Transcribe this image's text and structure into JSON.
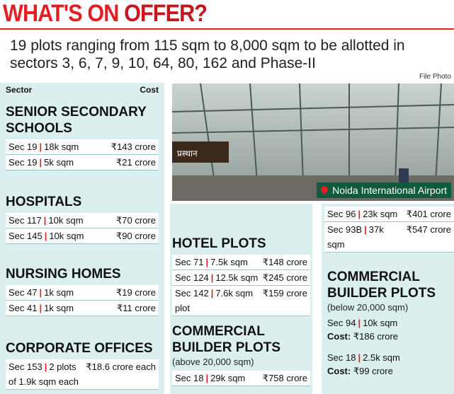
{
  "header": {
    "title_highlight": "WHAT'S ON",
    "title_rest": "OFFER?",
    "subtitle": "19 plots ranging from 115 sqm to 8,000 sqm to be allotted in sectors 3, 6, 7, 9, 10, 64, 80, 162 and Phase-II"
  },
  "separator": "|",
  "table_header": {
    "sector": "Sector",
    "cost": "Cost"
  },
  "photo": {
    "credit": "File Photo",
    "sign": "प्रस्थान",
    "caption": "Noida International Airport"
  },
  "sections": [
    {
      "title": "SENIOR SECONDARY SCHOOLS",
      "rows": [
        {
          "sector": "Sec 19",
          "area": "18k sqm",
          "cost": "₹143 crore"
        },
        {
          "sector": "Sec 19",
          "area": "5k sqm",
          "cost": "₹21 crore"
        }
      ]
    },
    {
      "title": "HOSPITALS",
      "rows": [
        {
          "sector": "Sec 117",
          "area": "10k sqm",
          "cost": "₹70 crore"
        },
        {
          "sector": "Sec 145",
          "area": "10k sqm",
          "cost": "₹90 crore"
        }
      ]
    },
    {
      "title": "NURSING HOMES",
      "rows": [
        {
          "sector": "Sec 47",
          "area": "1k sqm",
          "cost": "₹19 crore"
        },
        {
          "sector": "Sec 41",
          "area": "1k sqm",
          "cost": "₹11 crore"
        }
      ]
    },
    {
      "title": "CORPORATE OFFICES",
      "rows": [
        {
          "sector": "Sec 153",
          "area": "2 plots of 1.9k sqm each",
          "cost": "₹18.6 crore each"
        }
      ]
    },
    {
      "title": "HOTEL PLOTS",
      "rows": [
        {
          "sector": "Sec 71",
          "area": "7.5k sqm",
          "cost": "₹148 crore"
        },
        {
          "sector": "Sec 124",
          "area": "12.5k sqm",
          "cost": "₹245 crore"
        },
        {
          "sector": "Sec 142",
          "area": "7.6k sqm plot",
          "cost": "₹159 crore"
        }
      ]
    },
    {
      "title": "COMMERCIAL BUILDER PLOTS",
      "note": "(above 20,000 sqm)",
      "rows": [
        {
          "sector": "Sec 18",
          "area": "29k sqm",
          "cost": "₹758 crore"
        }
      ]
    },
    {
      "rows": [
        {
          "sector": "Sec 96",
          "area": "23k sqm",
          "cost": "₹401 crore"
        },
        {
          "sector": "Sec 93B",
          "area": "37k sqm",
          "cost": "₹547 crore"
        }
      ]
    },
    {
      "title": "COMMERCIAL BUILDER PLOTS",
      "note": "(below 20,000 sqm)",
      "rows": [
        {
          "sector": "Sec 94",
          "area": "10k sqm",
          "cost_label": "Cost:",
          "cost": "₹186 crore"
        },
        {
          "sector": "Sec 18",
          "area": "2.5k sqm",
          "cost_label": "Cost:",
          "cost": "₹99 crore"
        }
      ]
    }
  ]
}
